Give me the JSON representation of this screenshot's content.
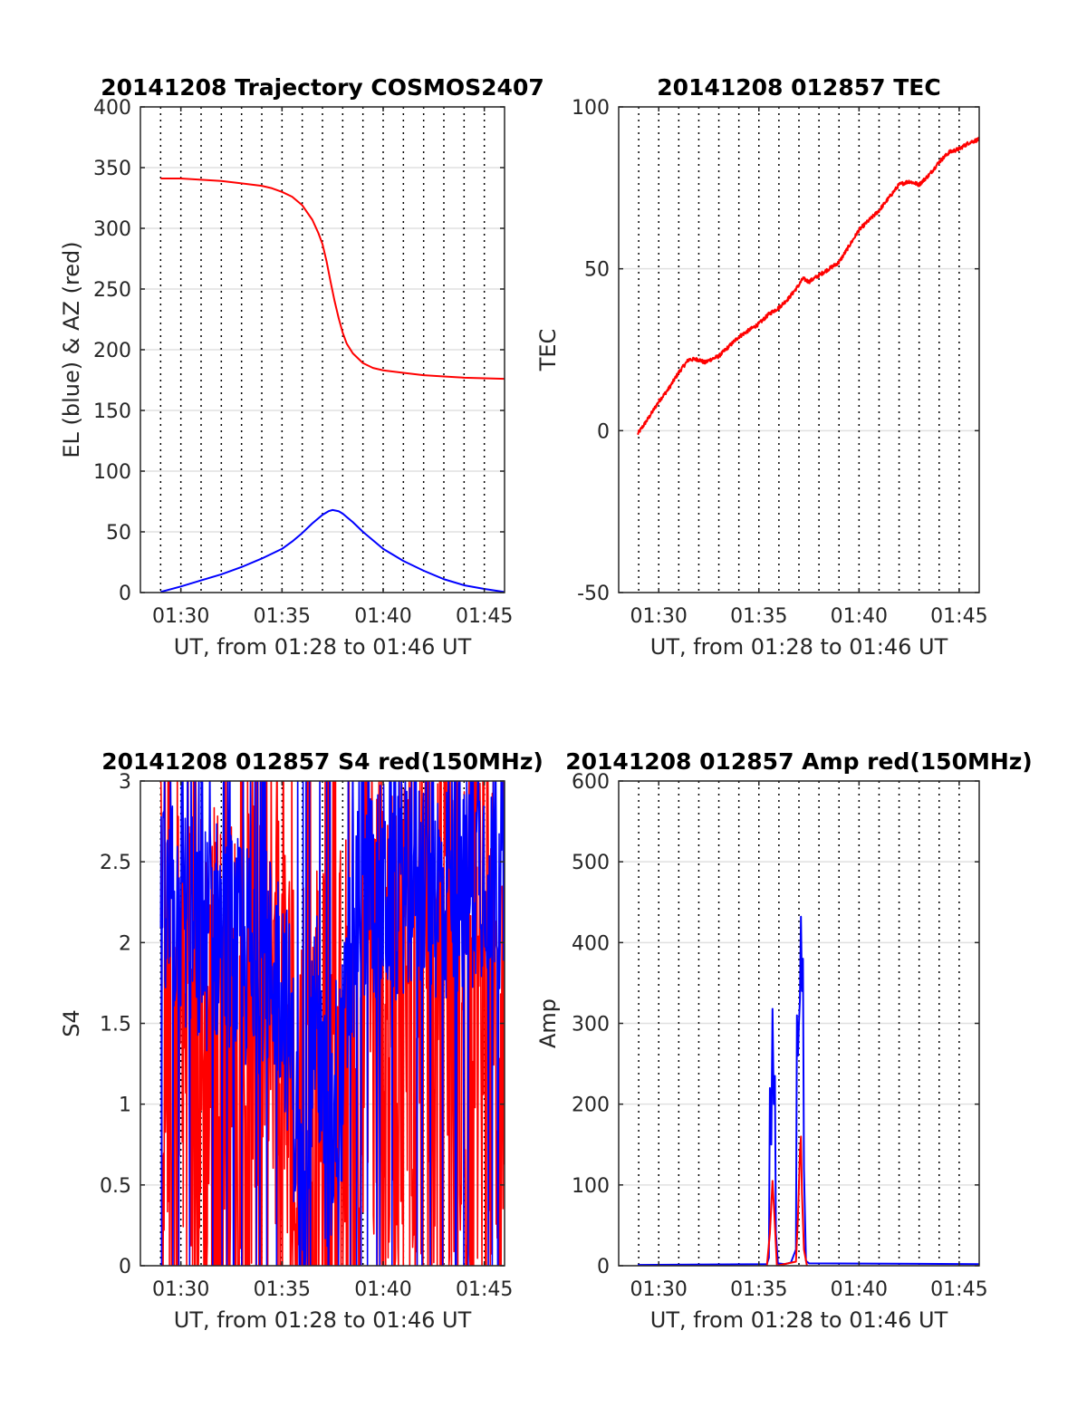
{
  "chart_data": [
    {
      "id": "trajectory",
      "type": "line",
      "title": "20141208 Trajectory COSMOS2407",
      "xlabel": "UT, from 01:28 to 01:46 UT",
      "ylabel": "EL (blue) & AZ (red)",
      "xlim": [
        88.0,
        106.0
      ],
      "ylim": [
        0,
        400
      ],
      "x_ticks": [
        90,
        95,
        100,
        105
      ],
      "x_tick_labels": [
        "01:30",
        "01:35",
        "01:40",
        "01:45"
      ],
      "y_ticks": [
        0,
        50,
        100,
        150,
        200,
        250,
        300,
        350,
        400
      ],
      "y_tick_labels": [
        "0",
        "50",
        "100",
        "150",
        "200",
        "250",
        "300",
        "350",
        "400"
      ],
      "grid": true,
      "series": [
        {
          "color": "#ff0000",
          "noise": 0,
          "x": [
            89.0,
            90.0,
            91.0,
            92.0,
            93.0,
            94.0,
            94.5,
            95.0,
            95.5,
            96.0,
            96.5,
            96.8,
            97.0,
            97.2,
            97.4,
            97.6,
            97.8,
            98.0,
            98.2,
            98.5,
            99.0,
            99.5,
            100.0,
            101.0,
            102.0,
            103.0,
            104.0,
            105.0,
            106.0
          ],
          "y": [
            341,
            341,
            340,
            339,
            337,
            335,
            333,
            330,
            326,
            319,
            307,
            296,
            287,
            273,
            256,
            240,
            226,
            214,
            205,
            197,
            189,
            185,
            183,
            181,
            179,
            178,
            177,
            176.5,
            176
          ]
        },
        {
          "color": "#0000ff",
          "noise": 0,
          "x": [
            89.0,
            90.0,
            91.0,
            92.0,
            93.0,
            94.0,
            95.0,
            95.5,
            96.0,
            96.5,
            97.0,
            97.3,
            97.5,
            97.8,
            98.0,
            98.5,
            99.0,
            99.5,
            100.0,
            101.0,
            102.0,
            103.0,
            104.0,
            105.0,
            106.0
          ],
          "y": [
            0.5,
            5,
            10,
            15,
            21,
            28,
            36,
            42,
            49,
            57,
            64,
            67,
            68,
            67,
            65,
            58,
            50,
            43,
            36,
            26,
            18,
            11,
            6,
            3,
            0.5
          ]
        }
      ]
    },
    {
      "id": "tec",
      "type": "line",
      "title": "20141208 012857 TEC",
      "xlabel": "UT, from 01:28 to 01:46 UT",
      "ylabel": "TEC",
      "xlim": [
        88.0,
        106.0
      ],
      "ylim": [
        -50,
        100
      ],
      "x_ticks": [
        90,
        95,
        100,
        105
      ],
      "x_tick_labels": [
        "01:30",
        "01:35",
        "01:40",
        "01:45"
      ],
      "y_ticks": [
        -50,
        0,
        50,
        100
      ],
      "y_tick_labels": [
        "-50",
        "0",
        "50",
        "100"
      ],
      "grid": true,
      "series": [
        {
          "color": "#ff0000",
          "noise": 0.6,
          "x": [
            88.95,
            89.5,
            90.0,
            90.5,
            91.0,
            91.5,
            92.0,
            92.3,
            92.6,
            93.0,
            93.5,
            94.0,
            94.5,
            95.0,
            95.5,
            96.0,
            96.5,
            97.0,
            97.2,
            97.5,
            98.0,
            98.5,
            99.0,
            99.5,
            100.0,
            100.5,
            101.0,
            101.5,
            102.0,
            102.5,
            103.0,
            103.5,
            104.0,
            104.5,
            105.0,
            105.5,
            106.0
          ],
          "y": [
            -1,
            4,
            9,
            13,
            18,
            22,
            22,
            21,
            22,
            23,
            26,
            29,
            31,
            33,
            36,
            38,
            41,
            45,
            47,
            46,
            48,
            50,
            52,
            57,
            62,
            65,
            68,
            72,
            76,
            77,
            76,
            79,
            83,
            86,
            87,
            89,
            90
          ]
        }
      ]
    },
    {
      "id": "s4",
      "type": "line",
      "title": "20141208 012857 S4 red(150MHz)",
      "xlabel": "UT, from 01:28 to 01:46 UT",
      "ylabel": "S4",
      "xlim": [
        88.0,
        106.0
      ],
      "ylim": [
        0,
        3
      ],
      "x_ticks": [
        90,
        95,
        100,
        105
      ],
      "x_tick_labels": [
        "01:30",
        "01:35",
        "01:40",
        "01:45"
      ],
      "y_ticks": [
        0,
        0.5,
        1,
        1.5,
        2,
        2.5,
        3
      ],
      "y_tick_labels": [
        "0",
        "0.5",
        "1",
        "1.5",
        "2",
        "2.5",
        "3"
      ],
      "grid": true,
      "series": [
        {
          "color": "#ff0000",
          "noise": 1.1,
          "clip": true,
          "x": [
            89.0,
            90.0,
            91.0,
            92.0,
            93.0,
            94.0,
            95.0,
            95.8,
            96.3,
            97.0,
            97.5,
            98.0,
            99.0,
            100.0,
            101.0,
            102.0,
            103.0,
            104.0,
            105.0,
            106.0
          ],
          "y": [
            1.5,
            1.3,
            1.2,
            1.2,
            1.1,
            1.1,
            1.2,
            0.7,
            0.6,
            0.8,
            0.6,
            1.0,
            1.4,
            1.5,
            1.6,
            1.5,
            1.4,
            1.5,
            1.3,
            1.2
          ]
        },
        {
          "color": "#0000ff",
          "noise": 0.45,
          "clip": true,
          "x": [
            89.0,
            90.0,
            91.0,
            92.0,
            93.0,
            94.0,
            95.0,
            95.5,
            95.9,
            96.2,
            96.6,
            97.0,
            97.3,
            97.6,
            98.0,
            98.5,
            99.0,
            100.0,
            101.0,
            102.0,
            103.0,
            104.0,
            105.0,
            106.0
          ],
          "y": [
            2.1,
            2.2,
            2.0,
            2.1,
            1.9,
            1.9,
            1.8,
            1.3,
            0.3,
            0.8,
            1.6,
            1.2,
            0.4,
            1.1,
            1.2,
            2.0,
            2.4,
            2.3,
            2.4,
            2.4,
            2.3,
            2.4,
            2.5,
            2.4
          ]
        }
      ]
    },
    {
      "id": "amp",
      "type": "line",
      "title": "20141208 012857 Amp red(150MHz)",
      "xlabel": "UT, from 01:28 to 01:46 UT",
      "ylabel": "Amp",
      "xlim": [
        88.0,
        106.0
      ],
      "ylim": [
        0,
        600
      ],
      "x_ticks": [
        90,
        95,
        100,
        105
      ],
      "x_tick_labels": [
        "01:30",
        "01:35",
        "01:40",
        "01:45"
      ],
      "y_ticks": [
        0,
        100,
        200,
        300,
        400,
        500,
        600
      ],
      "y_tick_labels": [
        "0",
        "100",
        "200",
        "300",
        "400",
        "500",
        "600"
      ],
      "grid": true,
      "series": [
        {
          "color": "#0000ff",
          "noise": 0,
          "x": [
            88.95,
            95.4,
            95.5,
            95.55,
            95.62,
            95.68,
            95.74,
            95.8,
            95.85,
            95.95,
            96.3,
            96.6,
            96.85,
            96.9,
            96.95,
            97.0,
            97.05,
            97.1,
            97.15,
            97.2,
            97.25,
            97.35,
            97.5,
            106.0
          ],
          "y": [
            1,
            2,
            10,
            220,
            150,
            318,
            200,
            235,
            40,
            3,
            2,
            4,
            20,
            310,
            260,
            300,
            330,
            432,
            340,
            380,
            120,
            6,
            3,
            2
          ]
        },
        {
          "color": "#ff0000",
          "noise": 0,
          "x": [
            95.4,
            95.55,
            95.68,
            95.78,
            95.9,
            96.85,
            96.95,
            97.05,
            97.1,
            97.15,
            97.25,
            97.4
          ],
          "y": [
            0,
            40,
            105,
            60,
            0,
            5,
            60,
            140,
            160,
            90,
            20,
            0
          ]
        }
      ]
    }
  ]
}
